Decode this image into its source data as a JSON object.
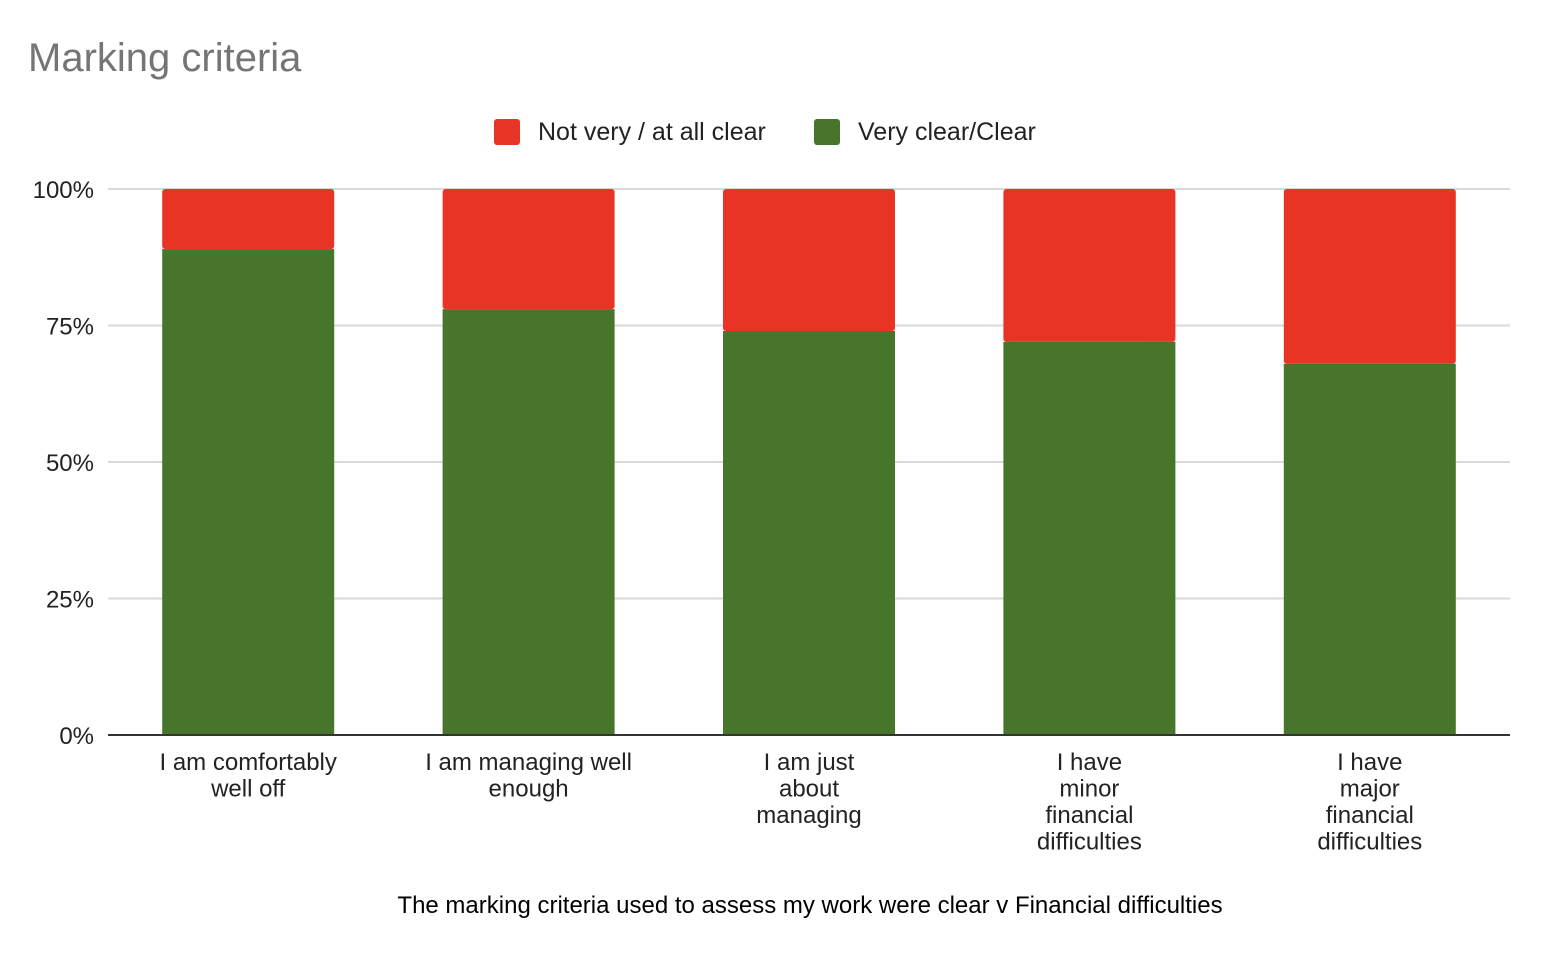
{
  "chart_data": {
    "type": "bar",
    "stacked": true,
    "title": "Marking criteria",
    "xlabel": "The marking criteria used to assess my work were clear v Financial difficulties",
    "ylabel": "",
    "ylim": [
      0,
      100
    ],
    "yticks": [
      "0%",
      "25%",
      "50%",
      "75%",
      "100%"
    ],
    "ytick_values": [
      0,
      25,
      50,
      75,
      100
    ],
    "grid": true,
    "legend_position": "top-center",
    "categories": [
      [
        "I am comfortably",
        "well off"
      ],
      [
        "I am managing well",
        "enough"
      ],
      [
        "I am just",
        "about",
        "managing"
      ],
      [
        "I have",
        "minor",
        "financial",
        "difficulties"
      ],
      [
        "I have",
        "major",
        "financial",
        "difficulties"
      ]
    ],
    "series": [
      {
        "name": "Very clear/Clear",
        "color": "#48752c",
        "values": [
          89,
          78,
          74,
          72,
          68
        ]
      },
      {
        "name": "Not very / at all clear",
        "color": "#e83425",
        "values": [
          11,
          22,
          26,
          28,
          32
        ]
      }
    ],
    "legend_order": [
      "Not very / at all clear",
      "Very clear/Clear"
    ]
  }
}
